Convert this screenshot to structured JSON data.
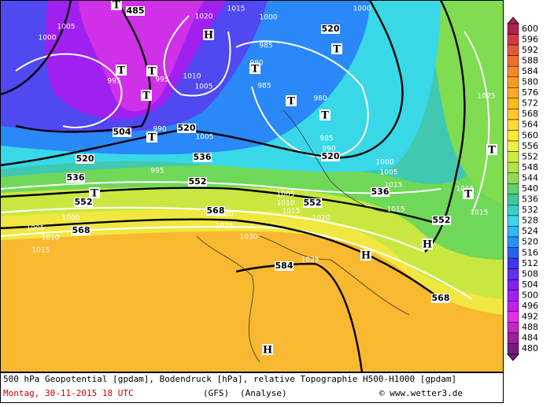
{
  "map": {
    "contour_labels": [
      "485",
      "520",
      "504",
      "520",
      "536",
      "520",
      "536",
      "552",
      "552",
      "552",
      "536",
      "552",
      "568",
      "568",
      "584",
      "568",
      "520"
    ],
    "pressure_labels": [
      "1015",
      "1020",
      "1000",
      "1000",
      "985",
      "1010",
      "1005",
      "995",
      "980",
      "985",
      "980",
      "985",
      "990",
      "1000",
      "1005",
      "1015",
      "1015",
      "1015",
      "1015",
      "1025",
      "1005",
      "995",
      "1005",
      "1010",
      "1015",
      "1020",
      "1025",
      "1030",
      "1025",
      "1000",
      "1005",
      "1010",
      "1015",
      "1020",
      "1005",
      "1000",
      "990",
      "995"
    ],
    "pressure_centers": [
      "H",
      "T",
      "T",
      "T",
      "T",
      "T",
      "T",
      "T",
      "T",
      "T",
      "T",
      "T",
      "T",
      "H",
      "H",
      "H"
    ]
  },
  "colorbar": {
    "levels": [
      600,
      596,
      592,
      588,
      584,
      580,
      576,
      572,
      568,
      564,
      560,
      556,
      552,
      548,
      544,
      540,
      536,
      532,
      528,
      524,
      520,
      516,
      512,
      508,
      504,
      500,
      496,
      492,
      488,
      484,
      480
    ],
    "colors": [
      "#b02050",
      "#d03848",
      "#e85838",
      "#f07030",
      "#f88828",
      "#fa9a24",
      "#fcaa22",
      "#ffb820",
      "#ffc828",
      "#ffd830",
      "#ffe838",
      "#f0f040",
      "#d0ec40",
      "#b0e448",
      "#90dc50",
      "#60d070",
      "#40c8a0",
      "#38d0c8",
      "#38d8e8",
      "#30b8f8",
      "#2890f8",
      "#2a60f0",
      "#3a38f0",
      "#6030f0",
      "#8020f0",
      "#a020f0",
      "#c020f0",
      "#e030e8",
      "#c028c0",
      "#9c2098",
      "#7a1a78"
    ]
  },
  "footer": {
    "description": "500 hPa Geopotential [gpdam], Bodendruck [hPa], relative Topographie H500-H1000 [gpdam]",
    "date": "Montag, 30-11-2015  18 UTC",
    "model": "(GFS)",
    "run": "(Analyse)",
    "credit": "© www.wetter3.de"
  }
}
